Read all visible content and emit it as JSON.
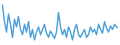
{
  "chart_data": {
    "type": "line",
    "x": [
      1,
      2,
      3,
      4,
      5,
      6,
      7,
      8,
      9,
      10,
      11,
      12,
      13,
      14,
      15,
      16,
      17,
      18,
      19,
      20,
      21,
      22,
      23,
      24,
      25,
      26,
      27,
      28,
      29,
      30,
      31,
      32,
      33,
      34,
      35,
      36,
      37,
      38,
      39,
      40,
      41,
      42,
      43,
      44,
      45,
      46,
      47,
      48,
      49,
      50,
      51,
      52,
      53,
      54,
      55,
      56,
      57,
      58,
      59
    ],
    "values": [
      92,
      60,
      40,
      75,
      55,
      30,
      65,
      50,
      70,
      45,
      35,
      55,
      40,
      60,
      30,
      45,
      25,
      40,
      50,
      35,
      45,
      55,
      38,
      30,
      42,
      35,
      28,
      40,
      78,
      50,
      35,
      45,
      30,
      50,
      40,
      25,
      45,
      55,
      35,
      30,
      38,
      45,
      30,
      35,
      50,
      40,
      45,
      35,
      55,
      45,
      38,
      60,
      48,
      40,
      52,
      45,
      55,
      50,
      48
    ],
    "color": "#4a9fd8",
    "xlim": [
      1,
      59
    ],
    "ylim": [
      20,
      95
    ],
    "tick_labels": false
  }
}
